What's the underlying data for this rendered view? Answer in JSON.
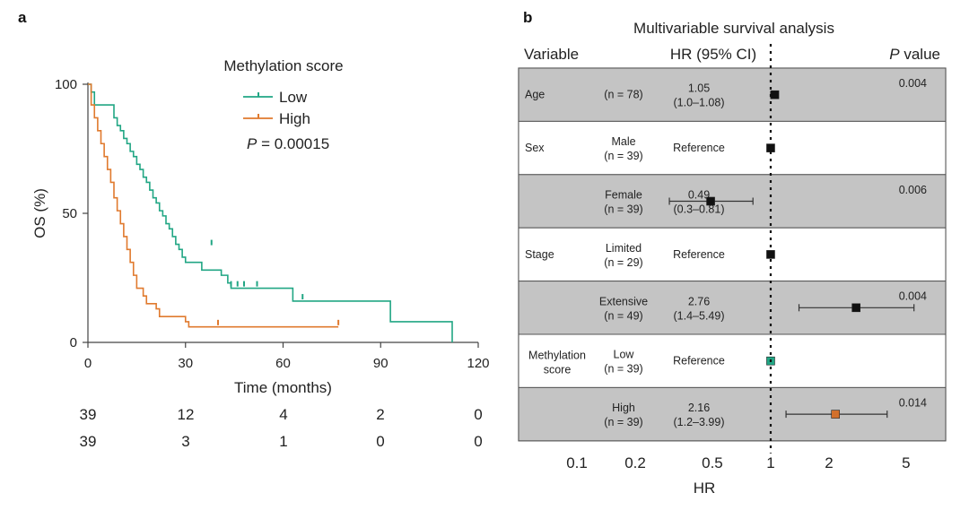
{
  "chart_data": [
    {
      "panel": "a",
      "type": "line",
      "subtype": "kaplan-meier",
      "xlabel": "Time (months)",
      "ylabel": "OS (%)",
      "xlim": [
        0,
        120
      ],
      "ylim": [
        0,
        100
      ],
      "xticks": [
        "0",
        "30",
        "60",
        "90",
        "120"
      ],
      "yticks": [
        "0",
        "50",
        "100"
      ],
      "legend_title": "Methylation score",
      "p_label": "P",
      "p_value": "= 0.00015",
      "series": [
        {
          "name": "Low",
          "color": "#21a684",
          "steps": [
            [
              0,
              100
            ],
            [
              1,
              97
            ],
            [
              2,
              92
            ],
            [
              7,
              92
            ],
            [
              8,
              87
            ],
            [
              9,
              84
            ],
            [
              10,
              82
            ],
            [
              11,
              79
            ],
            [
              12,
              77
            ],
            [
              13,
              74
            ],
            [
              14,
              72
            ],
            [
              15,
              69
            ],
            [
              16,
              67
            ],
            [
              17,
              64
            ],
            [
              18,
              62
            ],
            [
              19,
              59
            ],
            [
              20,
              56
            ],
            [
              21,
              54
            ],
            [
              22,
              51
            ],
            [
              23,
              49
            ],
            [
              24,
              46
            ],
            [
              25,
              44
            ],
            [
              26,
              41
            ],
            [
              27,
              38
            ],
            [
              28,
              36
            ],
            [
              29,
              33
            ],
            [
              30,
              31
            ],
            [
              31,
              31
            ],
            [
              35,
              28
            ],
            [
              40,
              28
            ],
            [
              41,
              26
            ],
            [
              43,
              23
            ],
            [
              44,
              21
            ],
            [
              62,
              21
            ],
            [
              63,
              16
            ],
            [
              92,
              16
            ],
            [
              93,
              8
            ],
            [
              112,
              8
            ],
            [
              112,
              0
            ]
          ],
          "censors": [
            [
              38,
              38
            ],
            [
              44,
              22
            ],
            [
              46,
              22
            ],
            [
              48,
              22
            ],
            [
              52,
              22
            ],
            [
              66,
              17
            ]
          ]
        },
        {
          "name": "High",
          "color": "#e07a2e",
          "steps": [
            [
              0,
              100
            ],
            [
              1,
              92
            ],
            [
              2,
              87
            ],
            [
              3,
              82
            ],
            [
              4,
              77
            ],
            [
              5,
              72
            ],
            [
              6,
              67
            ],
            [
              7,
              62
            ],
            [
              8,
              56
            ],
            [
              9,
              51
            ],
            [
              10,
              46
            ],
            [
              11,
              41
            ],
            [
              12,
              36
            ],
            [
              13,
              31
            ],
            [
              14,
              26
            ],
            [
              15,
              21
            ],
            [
              17,
              18
            ],
            [
              18,
              15
            ],
            [
              20,
              15
            ],
            [
              21,
              13
            ],
            [
              22,
              10
            ],
            [
              29,
              10
            ],
            [
              30,
              8
            ],
            [
              31,
              6
            ],
            [
              77,
              6
            ]
          ],
          "censors": [
            [
              40,
              7
            ],
            [
              77,
              7
            ]
          ]
        }
      ],
      "risk_table": {
        "low": [
          "39",
          "12",
          "4",
          "2",
          "0"
        ],
        "high": [
          "39",
          "3",
          "1",
          "0",
          "0"
        ]
      }
    },
    {
      "panel": "b",
      "type": "forest",
      "title": "Multivariable survival analysis",
      "headers": {
        "variable": "Variable",
        "hr": "HR (95% CI)",
        "p_italic": "P",
        "p_rest": " value"
      },
      "xlabel": "HR",
      "xscale": "log",
      "xlim": [
        0.05,
        8
      ],
      "xticks": [
        0.1,
        0.2,
        0.5,
        1,
        2,
        5
      ],
      "xtick_labels": [
        "0.1",
        "0.2",
        "0.5",
        "1",
        "2",
        "5"
      ],
      "rows": [
        {
          "variable": "Age",
          "sub": "",
          "n": "n = 78",
          "hr_text": "1.05",
          "ci_text": "(1.0–1.08)",
          "hr": 1.05,
          "lo": 1.0,
          "hi": 1.08,
          "p": "0.004",
          "shaded": true,
          "marker": "#111111"
        },
        {
          "variable": "Sex",
          "sub": "Male",
          "n": "n = 39",
          "hr_text": "Reference",
          "ci_text": "",
          "hr": 1.0,
          "lo": null,
          "hi": null,
          "p": "",
          "shaded": false,
          "marker": "#111111"
        },
        {
          "variable": "",
          "sub": "Female",
          "n": "n = 39",
          "hr_text": "0.49",
          "ci_text": "(0.3–0.81)",
          "hr": 0.49,
          "lo": 0.3,
          "hi": 0.81,
          "p": "0.006",
          "shaded": true,
          "marker": "#111111"
        },
        {
          "variable": "Stage",
          "sub": "Limited",
          "n": "n = 29",
          "hr_text": "Reference",
          "ci_text": "",
          "hr": 1.0,
          "lo": null,
          "hi": null,
          "p": "",
          "shaded": false,
          "marker": "#111111"
        },
        {
          "variable": "",
          "sub": "Extensive",
          "n": "n = 49",
          "hr_text": "2.76",
          "ci_text": "(1.4–5.49)",
          "hr": 2.76,
          "lo": 1.4,
          "hi": 5.49,
          "p": "0.004",
          "shaded": true,
          "marker": "#111111"
        },
        {
          "variable": "Methylation",
          "variable2": "score",
          "sub": "Low",
          "n": "n = 39",
          "hr_text": "Reference",
          "ci_text": "",
          "hr": 1.0,
          "lo": null,
          "hi": null,
          "p": "",
          "shaded": false,
          "marker": "#21a684"
        },
        {
          "variable": "",
          "sub": "High",
          "n": "n = 39",
          "hr_text": "2.16",
          "ci_text": "(1.2–3.99)",
          "hr": 2.16,
          "lo": 1.2,
          "hi": 3.99,
          "p": "0.014",
          "shaded": true,
          "marker": "#d2702c"
        }
      ]
    }
  ]
}
